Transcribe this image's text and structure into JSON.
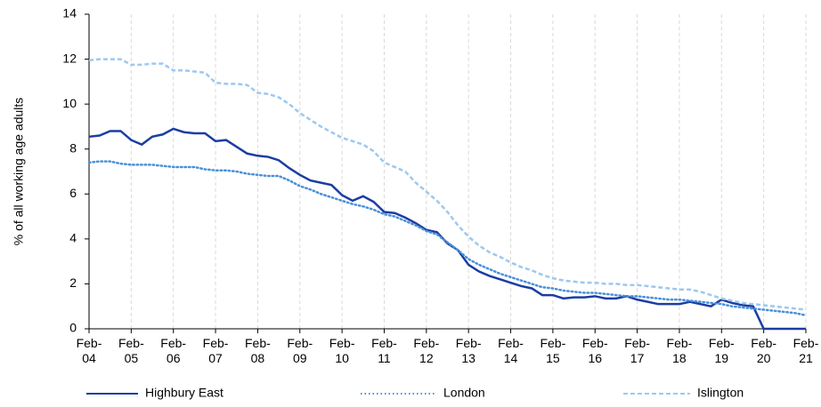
{
  "chart_data": {
    "type": "line",
    "y_label": "% of all working age adults",
    "categories": [
      "Feb-04",
      null,
      null,
      null,
      "Feb-05",
      null,
      null,
      null,
      "Feb-06",
      null,
      null,
      null,
      "Feb-07",
      null,
      null,
      null,
      "Feb-08",
      null,
      null,
      null,
      "Feb-09",
      null,
      null,
      null,
      "Feb-10",
      null,
      null,
      null,
      "Feb-11",
      null,
      null,
      null,
      "Feb-12",
      null,
      null,
      null,
      "Feb-13",
      null,
      null,
      null,
      "Feb-14",
      null,
      null,
      null,
      "Feb-15",
      null,
      null,
      null,
      "Feb-16",
      null,
      null,
      null,
      "Feb-17",
      null,
      null,
      null,
      "Feb-18",
      null,
      null,
      null,
      "Feb-19",
      null,
      null,
      null,
      "Feb-20",
      null,
      null,
      null,
      "Feb-21"
    ],
    "series": [
      {
        "name": "Highbury East",
        "color": "#1b3da3",
        "style": "solid",
        "values": [
          8.55,
          8.6,
          8.8,
          8.8,
          8.4,
          8.2,
          8.55,
          8.65,
          8.9,
          8.75,
          8.7,
          8.7,
          8.35,
          8.4,
          8.1,
          7.8,
          7.7,
          7.65,
          7.5,
          7.15,
          6.85,
          6.6,
          6.5,
          6.4,
          5.95,
          5.7,
          5.9,
          5.65,
          5.2,
          5.15,
          4.95,
          4.7,
          4.4,
          4.3,
          3.8,
          3.5,
          2.85,
          2.55,
          2.35,
          2.2,
          2.05,
          1.9,
          1.8,
          1.5,
          1.5,
          1.35,
          1.4,
          1.4,
          1.45,
          1.35,
          1.35,
          1.45,
          1.3,
          1.2,
          1.1,
          1.1,
          1.1,
          1.2,
          1.1,
          1.0,
          1.3,
          1.15,
          1.05,
          1.0,
          0,
          0,
          0,
          0,
          0
        ]
      },
      {
        "name": "London",
        "color": "#4a90d9",
        "style": "dotted",
        "values": [
          7.4,
          7.45,
          7.45,
          7.35,
          7.3,
          7.3,
          7.3,
          7.25,
          7.2,
          7.2,
          7.2,
          7.1,
          7.05,
          7.05,
          7.0,
          6.9,
          6.85,
          6.8,
          6.8,
          6.6,
          6.35,
          6.2,
          6.0,
          5.85,
          5.7,
          5.55,
          5.45,
          5.3,
          5.1,
          5.0,
          4.8,
          4.6,
          4.35,
          4.2,
          3.85,
          3.5,
          3.1,
          2.85,
          2.65,
          2.45,
          2.3,
          2.15,
          2.0,
          1.85,
          1.8,
          1.7,
          1.65,
          1.6,
          1.6,
          1.55,
          1.5,
          1.45,
          1.45,
          1.4,
          1.35,
          1.3,
          1.3,
          1.25,
          1.2,
          1.15,
          1.1,
          1.0,
          0.95,
          0.9,
          0.85,
          0.8,
          0.75,
          0.7,
          0.6
        ]
      },
      {
        "name": "Islington",
        "color": "#9dc8f0",
        "style": "dashed",
        "values": [
          11.95,
          12,
          12,
          12,
          11.75,
          11.75,
          11.8,
          11.8,
          11.5,
          11.5,
          11.45,
          11.4,
          10.95,
          10.9,
          10.9,
          10.85,
          10.5,
          10.45,
          10.3,
          10.0,
          9.6,
          9.3,
          9.0,
          8.75,
          8.5,
          8.35,
          8.2,
          7.9,
          7.4,
          7.2,
          7.0,
          6.5,
          6.1,
          5.7,
          5.2,
          4.6,
          4.1,
          3.7,
          3.4,
          3.2,
          2.95,
          2.75,
          2.6,
          2.4,
          2.25,
          2.15,
          2.1,
          2.05,
          2.05,
          2.0,
          2.0,
          1.95,
          1.95,
          1.9,
          1.85,
          1.8,
          1.75,
          1.75,
          1.65,
          1.5,
          1.35,
          1.25,
          1.15,
          1.1,
          1.05,
          1.0,
          0.95,
          0.9,
          0.85
        ]
      }
    ],
    "ylim": [
      0,
      14
    ],
    "yticks": [
      0,
      2,
      4,
      6,
      8,
      10,
      12,
      14
    ],
    "legend": "bottom"
  }
}
